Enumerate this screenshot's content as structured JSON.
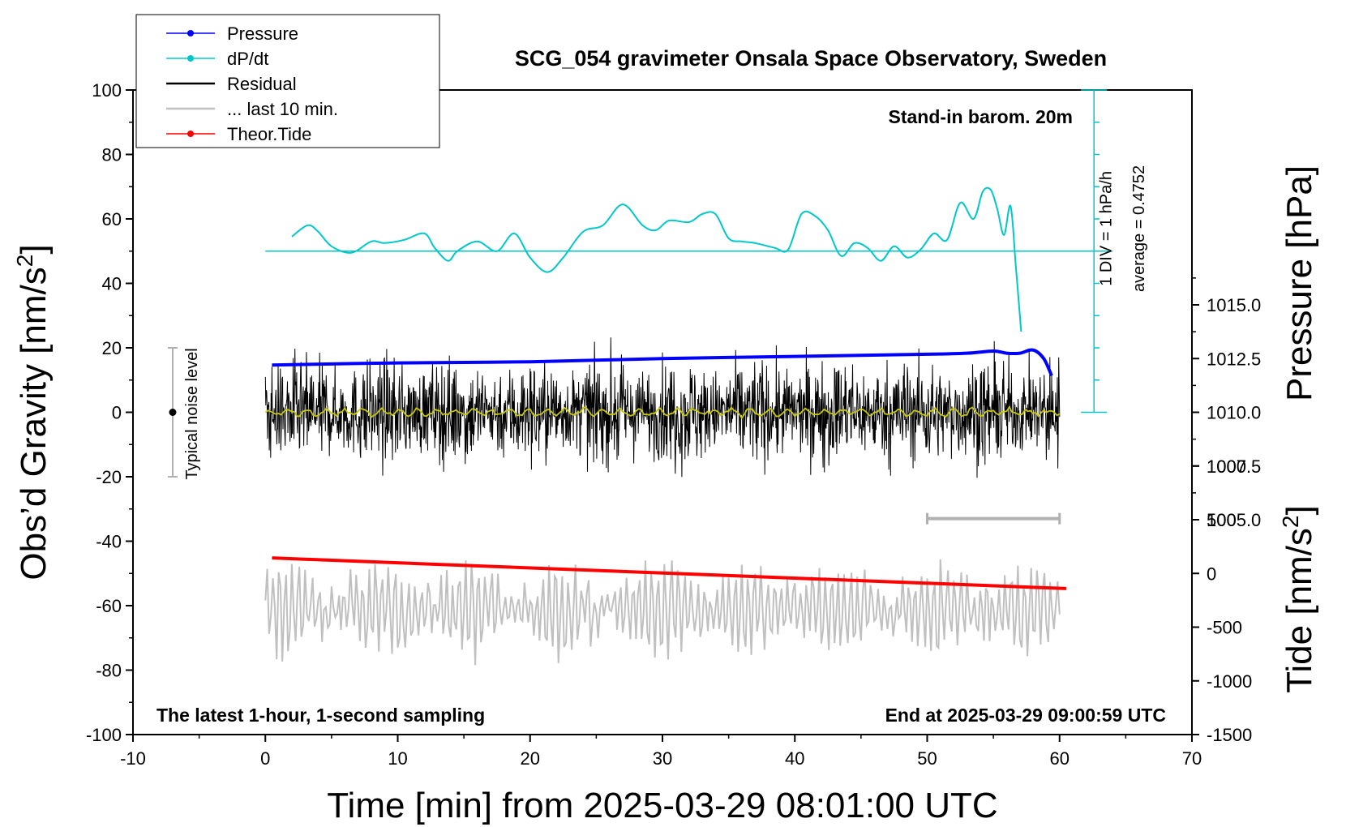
{
  "chart_data": {
    "type": "line",
    "title": "SCG_054 gravimeter Onsala Space Observatory, Sweden",
    "xlabel": "Time [min] from 2025-03-29 08:01:00 UTC",
    "ylabel_left_main": "Obs’d Gravity [nm/s",
    "ylabel_left_sup": "2",
    "ylabel_left_end": "]",
    "ylabel_right_pressure": "Pressure [hPa]",
    "ylabel_right_tide_main": "Tide [nm/s",
    "ylabel_right_tide_sup": "2",
    "ylabel_right_tide_end": "]",
    "xlim": [
      -10,
      70
    ],
    "ylim": [
      -100,
      100
    ],
    "x_ticks": [
      "-10",
      "0",
      "10",
      "20",
      "30",
      "40",
      "50",
      "60",
      "70"
    ],
    "y_ticks": [
      "-100",
      "-80",
      "-60",
      "-40",
      "-20",
      "0",
      "20",
      "40",
      "60",
      "80",
      "100"
    ],
    "pressure_ticks": [
      "1005.0",
      "1007.5",
      "1010.0",
      "1012.5",
      "1015.0"
    ],
    "pressure_range": [
      995.0,
      1025.0
    ],
    "tide_ticks": [
      "-1500",
      "-1000",
      "-500",
      "0",
      "500",
      "1000"
    ],
    "tide_range": [
      -1500,
      4500
    ],
    "annotations": {
      "barometer": "Stand-in barom. 20m",
      "dpdt_div": "1 DIV = 1 hPa/h",
      "dpdt_avg": "average = 0.4752",
      "noise_level": "Typical noise level",
      "latest": "The latest 1-hour, 1-second sampling",
      "end_at": "End at 2025-03-29 09:00:59 UTC"
    },
    "legend": [
      {
        "label": "Pressure",
        "color": "#0000ff",
        "marker": true
      },
      {
        "label": "dP/dt",
        "color": "#00c8c8",
        "marker": true
      },
      {
        "label": "Residual",
        "color": "#000000",
        "marker": false
      },
      {
        "label": "... last 10 min.",
        "color": "#c0c0c0",
        "marker": false
      },
      {
        "label": "Theor.Tide",
        "color": "#ff0000",
        "marker": true
      }
    ],
    "series": [
      {
        "name": "Pressure",
        "color": "#0000ff",
        "unit": "hPa",
        "x": [
          0.5,
          10,
          20,
          30,
          40,
          50,
          53,
          55,
          56,
          57,
          58,
          58.8,
          59.4
        ],
        "y": [
          1012.2,
          1012.3,
          1012.35,
          1012.5,
          1012.6,
          1012.7,
          1012.75,
          1012.85,
          1012.75,
          1012.75,
          1012.9,
          1012.5,
          1011.7
        ]
      },
      {
        "name": "dP/dt",
        "color": "#00c8c8",
        "x": [
          2,
          3.2,
          4,
          5,
          6.5,
          8,
          9,
          10.5,
          12,
          12.8,
          13.8,
          14.5,
          16,
          17.5,
          18.8,
          20,
          21.3,
          22.5,
          24,
          25.5,
          27,
          28.5,
          29.5,
          30.5,
          32,
          33,
          34,
          35,
          36,
          37,
          38.5,
          39.5,
          40.5,
          41.5,
          42.5,
          43.5,
          44.5,
          45.5,
          46.5,
          47.5,
          48.5,
          49.5,
          50.5,
          51.5,
          52.5,
          53.5,
          54.2,
          54.8,
          55.3,
          55.8,
          56.3,
          56.7,
          57.1
        ],
        "y": [
          54.5,
          58,
          56,
          51.5,
          49.5,
          53,
          52.5,
          53.5,
          55.5,
          51,
          47,
          50,
          53,
          50,
          55.5,
          48,
          43.5,
          48,
          56,
          58,
          64.5,
          58,
          56.5,
          59.5,
          59,
          61.5,
          61.5,
          54,
          53,
          52.5,
          51,
          50.5,
          61.5,
          61,
          56.5,
          48.5,
          52.5,
          51,
          47,
          51.5,
          48,
          50.5,
          55.5,
          53.5,
          65,
          60,
          68.5,
          69,
          63,
          55,
          64,
          45,
          25
        ]
      },
      {
        "name": "dP/dt zero line",
        "color": "#00c8c8",
        "x": [
          0,
          64
        ],
        "y": [
          50,
          50
        ]
      },
      {
        "name": "Residual",
        "color": "#000000",
        "x_range": [
          0,
          60
        ],
        "amplitude_nm_s2": 12,
        "spike_range": [
          -31,
          27
        ]
      },
      {
        "name": "Residual (smoothed)",
        "color": "#c8c800",
        "x_range": [
          0,
          60
        ],
        "amplitude_nm_s2": 1.5
      },
      {
        "name": "... last 10 min.",
        "color": "#c0c0c0",
        "x_range": [
          0,
          60
        ],
        "center_nm_s2": -61,
        "range_nm_s2": [
          -86,
          -39
        ]
      },
      {
        "name": "Theor.Tide",
        "color": "#ff0000",
        "x": [
          0.5,
          60.5
        ],
        "y": [
          -45.2,
          -54.7
        ]
      }
    ],
    "noise_bar": {
      "x": -7,
      "y_range": [
        -20,
        20
      ]
    },
    "window_bar": {
      "x_range": [
        50,
        60
      ],
      "y": -33
    }
  }
}
